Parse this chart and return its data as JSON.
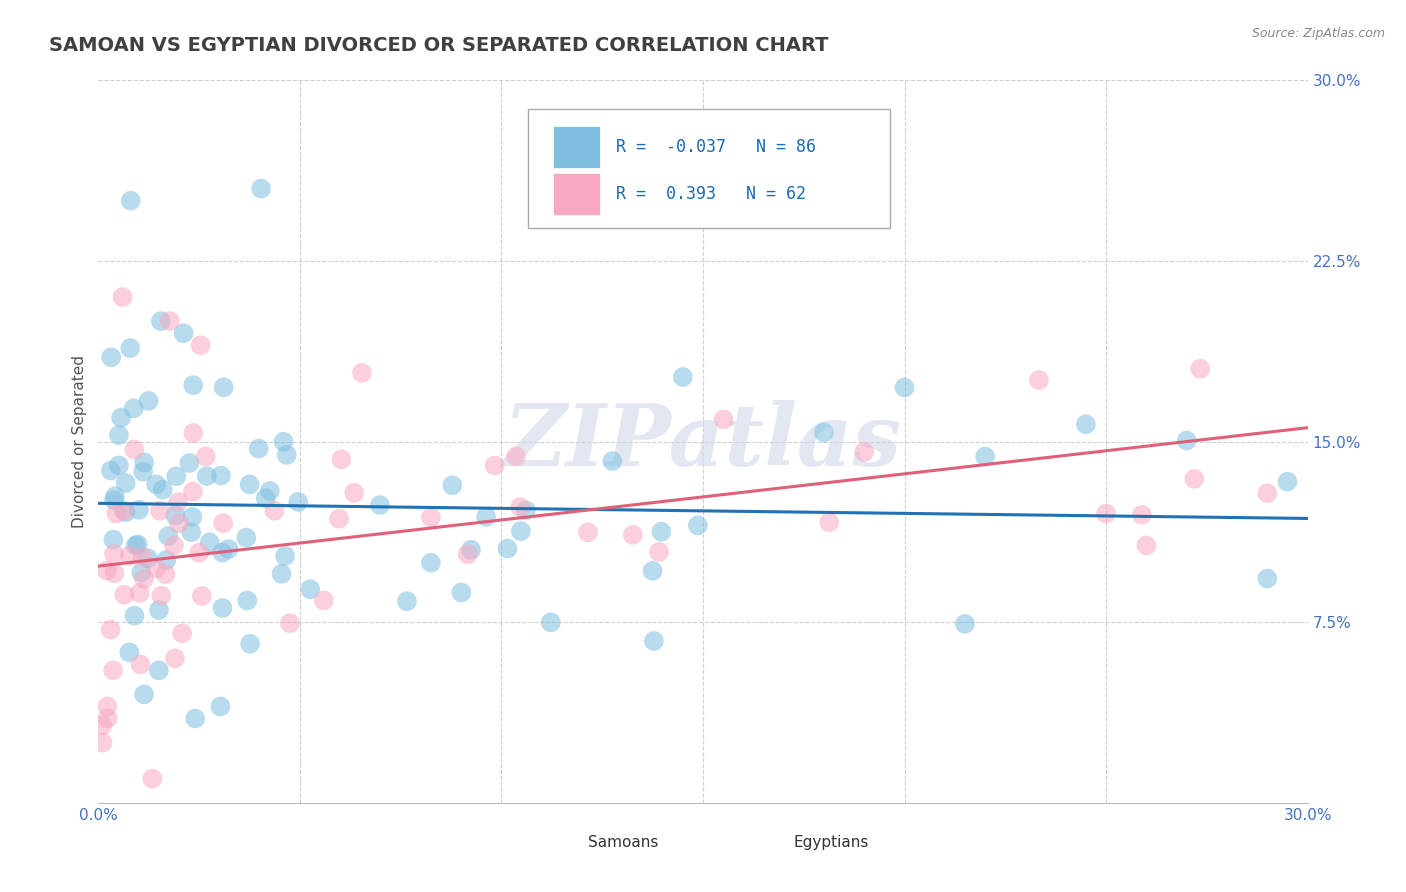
{
  "title": "SAMOAN VS EGYPTIAN DIVORCED OR SEPARATED CORRELATION CHART",
  "source_text": "Source: ZipAtlas.com",
  "ylabel": "Divorced or Separated",
  "xmin": 0.0,
  "xmax": 0.3,
  "ymin": 0.0,
  "ymax": 0.3,
  "yticks_right": [
    0.075,
    0.15,
    0.225,
    0.3
  ],
  "ytick_right_labels": [
    "7.5%",
    "15.0%",
    "22.5%",
    "30.0%"
  ],
  "samoan_color": "#7fbfdf",
  "egyptian_color": "#f9a8c0",
  "samoan_line_color": "#2171b5",
  "egyptian_line_color": "#e0607a",
  "samoan_R": -0.037,
  "samoan_N": 86,
  "egyptian_R": 0.393,
  "egyptian_N": 62,
  "watermark": "ZIPatlas",
  "background_color": "#ffffff",
  "grid_color": "#bbbbbb",
  "title_color": "#404040",
  "legend_R_color": "#1a6bb5"
}
